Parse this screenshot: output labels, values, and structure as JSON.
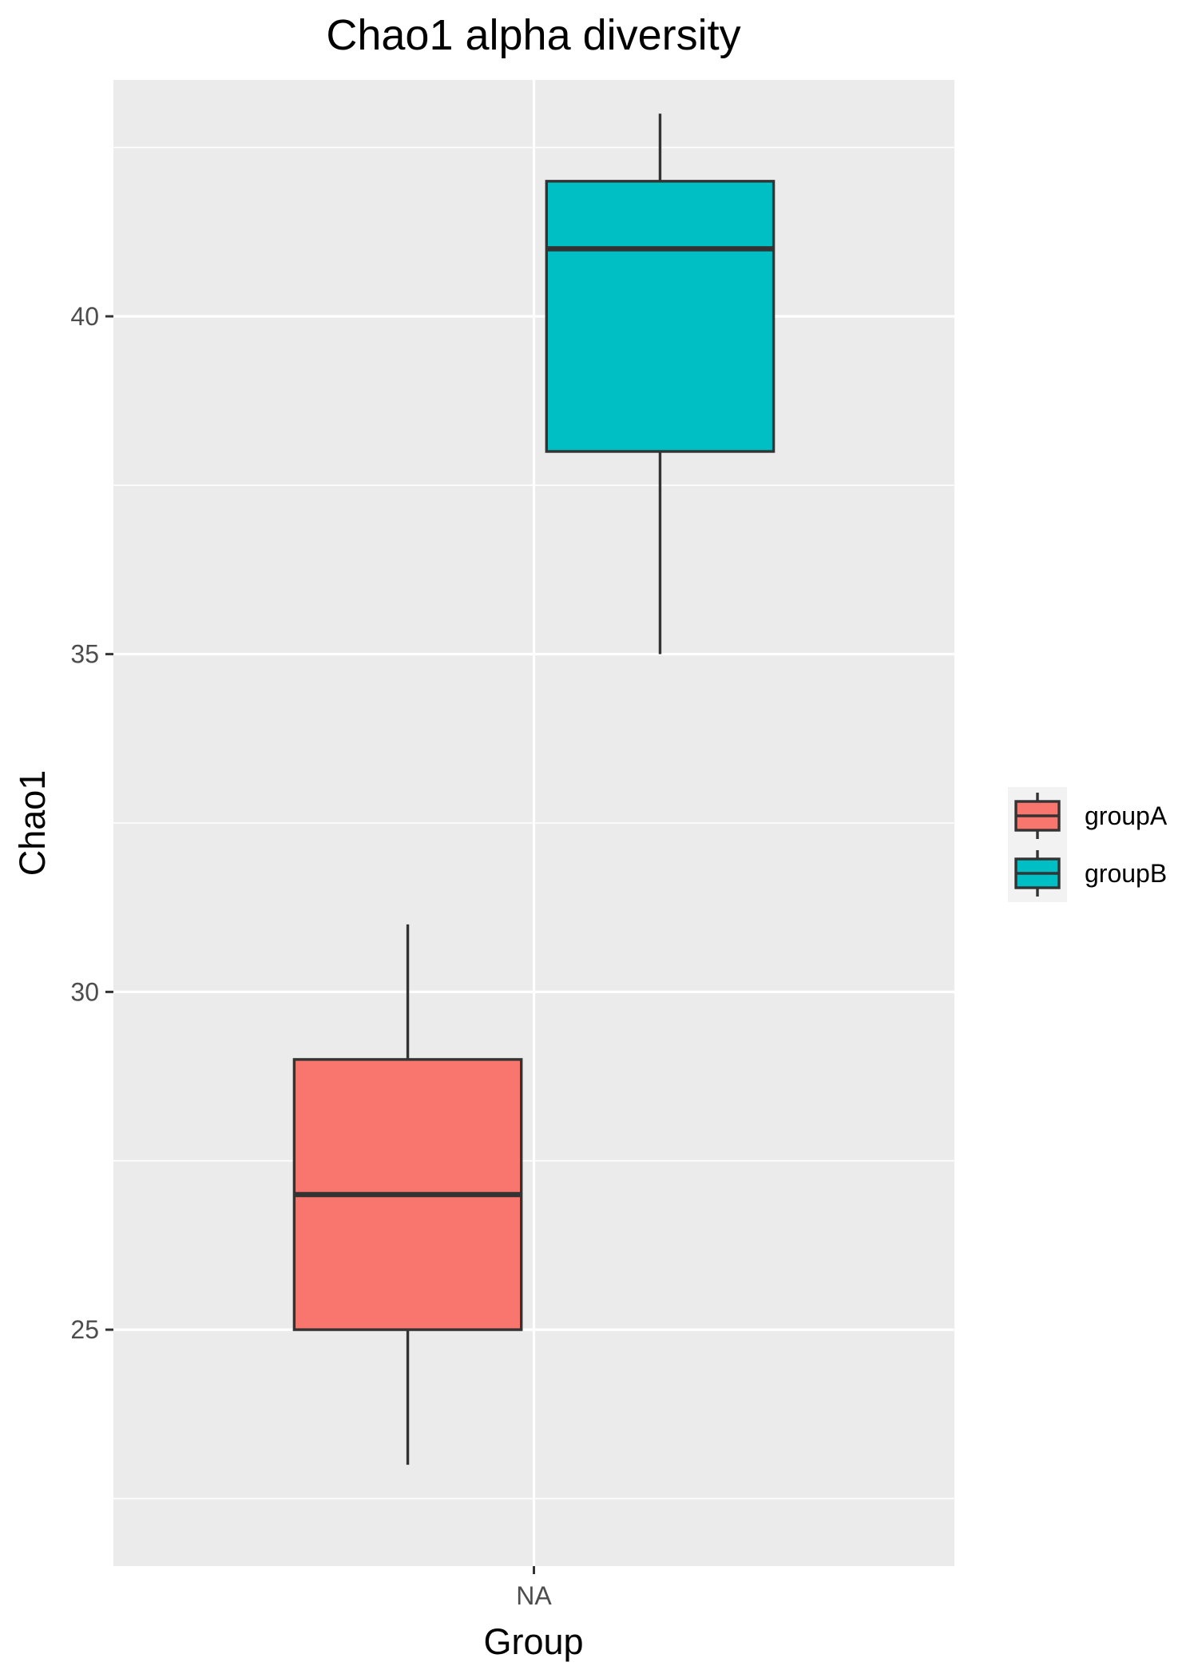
{
  "chart_data": {
    "type": "box",
    "title": "Chao1 alpha diversity",
    "xlabel": "Group",
    "ylabel": "Chao1",
    "x_categories": [
      "NA"
    ],
    "y_ticks": [
      25,
      30,
      35,
      40
    ],
    "ylim": [
      21.5,
      43.5
    ],
    "grid": true,
    "legend_position": "right",
    "series": [
      {
        "name": "groupA",
        "color": "#F8766D",
        "min": 23,
        "q1": 25,
        "median": 27,
        "q3": 29,
        "max": 31
      },
      {
        "name": "groupB",
        "color": "#00BFC4",
        "min": 35,
        "q1": 38,
        "median": 41,
        "q3": 42,
        "max": 43
      }
    ],
    "panel_color": "#EBEBEB",
    "gridline_color": "#FFFFFF",
    "outline_color": "#333333"
  }
}
